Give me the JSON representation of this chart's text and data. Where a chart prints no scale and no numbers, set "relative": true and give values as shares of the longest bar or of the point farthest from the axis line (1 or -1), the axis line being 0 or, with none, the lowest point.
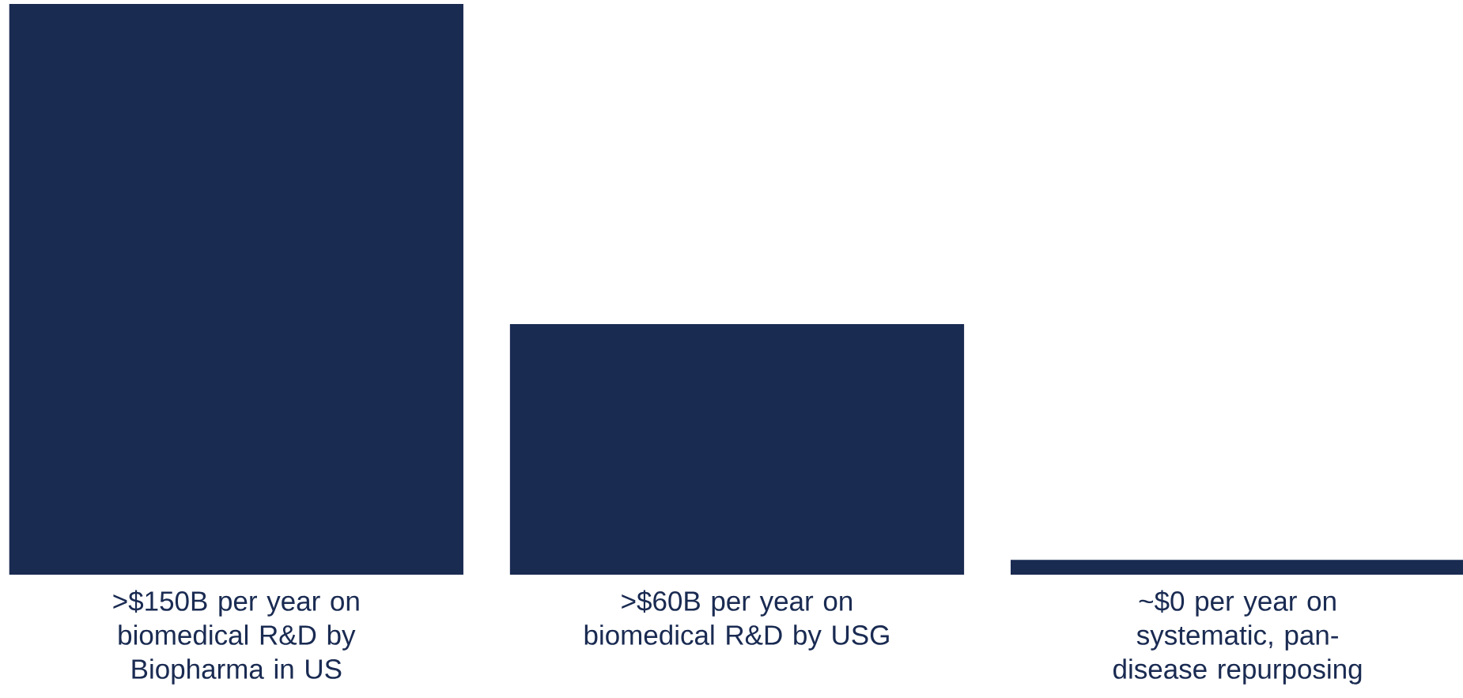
{
  "chart_data": {
    "type": "bar",
    "relative": true,
    "color": "#1a2b52",
    "categories": [
      ">$150B per year on biomedical R&D by Biopharma in US",
      ">$60B per year on biomedical R&D by USG",
      "~$0 per year on systematic, pan-disease repurposing"
    ],
    "values": [
      1,
      0.439,
      0.026
    ]
  }
}
